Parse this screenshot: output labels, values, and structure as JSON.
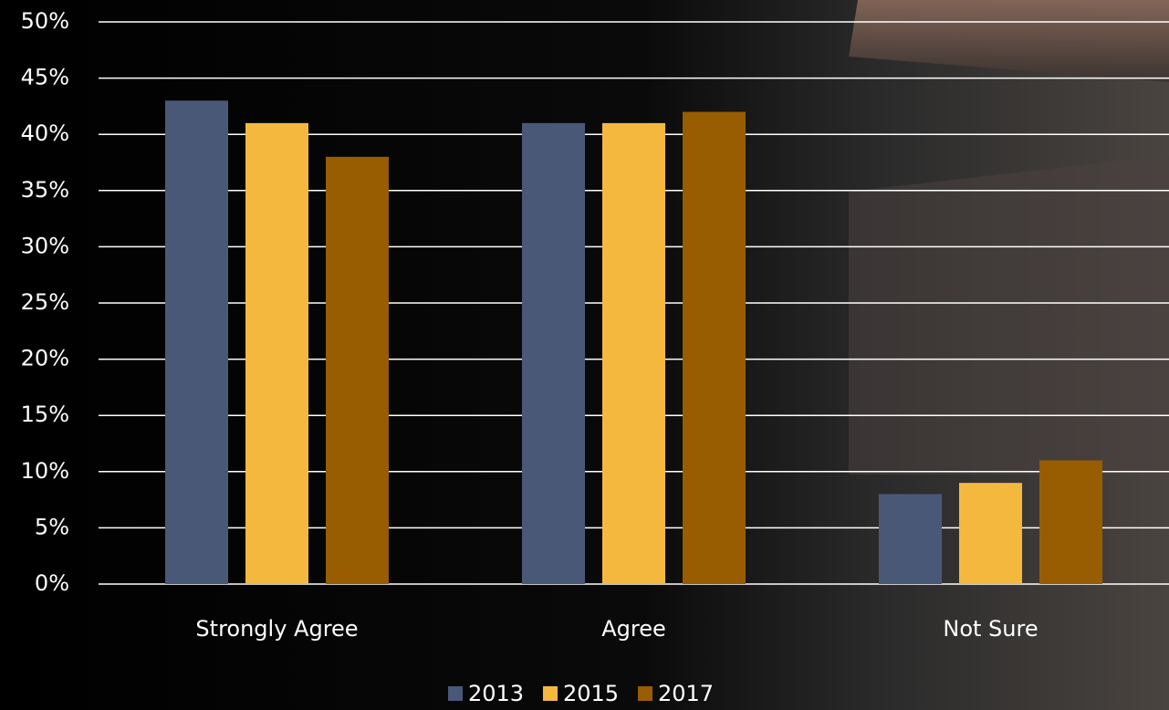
{
  "chart_data": {
    "type": "bar",
    "categories": [
      "Strongly Agree",
      "Agree",
      "Not Sure"
    ],
    "series": [
      {
        "name": "2013",
        "color": "#4a5878",
        "values": [
          43,
          41,
          8
        ]
      },
      {
        "name": "2015",
        "color": "#f5b83f",
        "values": [
          41,
          41,
          9
        ]
      },
      {
        "name": "2017",
        "color": "#985d00",
        "values": [
          38,
          42,
          11
        ]
      }
    ],
    "ylim": [
      0,
      50
    ],
    "yticks": [
      {
        "value": 0,
        "label": "0%"
      },
      {
        "value": 5,
        "label": "5%"
      },
      {
        "value": 10,
        "label": "10%"
      },
      {
        "value": 15,
        "label": "15%"
      },
      {
        "value": 20,
        "label": "20%"
      },
      {
        "value": 25,
        "label": "25%"
      },
      {
        "value": 30,
        "label": "30%"
      },
      {
        "value": 35,
        "label": "35%"
      },
      {
        "value": 40,
        "label": "40%"
      },
      {
        "value": 45,
        "label": "45%"
      },
      {
        "value": 50,
        "label": "50%"
      }
    ],
    "grid": true,
    "legend": "bottom"
  }
}
